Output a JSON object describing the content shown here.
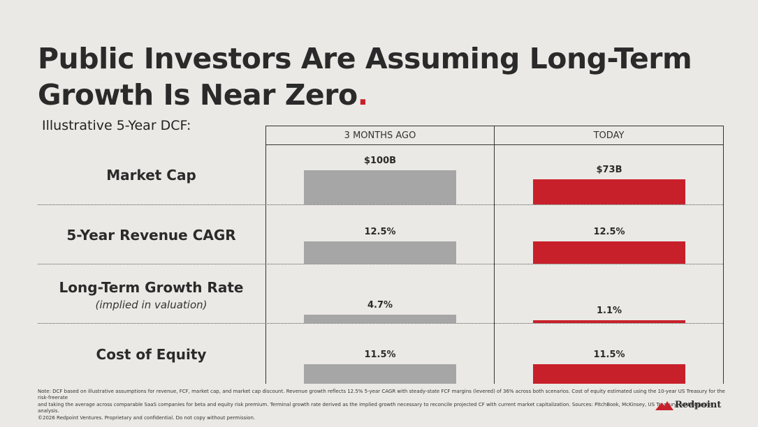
{
  "title_main": "Public Investors Are Assuming Long-Term Growth Is Near Zero",
  "title_dot": ".",
  "subtitle": "Illustrative 5-Year DCF:",
  "columns": [
    "3 MONTHS AGO",
    "TODAY"
  ],
  "colors": {
    "then": "#a6a6a6",
    "today": "#c8202b"
  },
  "rows": [
    {
      "label": "Market Cap",
      "sub": ""
    },
    {
      "label": "5-Year Revenue CAGR",
      "sub": ""
    },
    {
      "label": "Long-Term Growth Rate",
      "sub": "(implied in valuation)"
    },
    {
      "label": "Cost of Equity",
      "sub": ""
    }
  ],
  "chart_data": {
    "type": "bar",
    "categories": [
      "Market Cap",
      "5-Year Revenue CAGR",
      "Long-Term Growth Rate",
      "Cost of Equity"
    ],
    "series": [
      {
        "name": "3 MONTHS AGO",
        "values": [
          100,
          12.5,
          4.7,
          11.5
        ],
        "labels": [
          "$100B",
          "12.5%",
          "4.7%",
          "11.5%"
        ]
      },
      {
        "name": "TODAY",
        "values": [
          73,
          12.5,
          1.1,
          11.5
        ],
        "labels": [
          "$73B",
          "12.5%",
          "1.1%",
          "11.5%"
        ]
      }
    ]
  },
  "note_lines": [
    "Note: DCF based on illustrative assumptions for revenue, FCF, market cap, and market cap discount. Revenue growth reflects 12.5% 5-year CAGR with steady-state FCF margins (levered) of 36% across both scenarios. Cost of equity estimated using the 10-year US Treasury for the risk-freerate",
    "and taking the average across comparable SaaS companies for beta and equity risk premium. Terminal growth rate derived as the implied growth necessary to reconcile projected CF with current market capitalization. Sources: PitchBook, McKinsey, US Treasury, and Redpoint analysis.",
    "©2026 Redpoint Ventures. Proprietary and confidential. Do not copy without permission."
  ],
  "logo_text": "Redpoint"
}
